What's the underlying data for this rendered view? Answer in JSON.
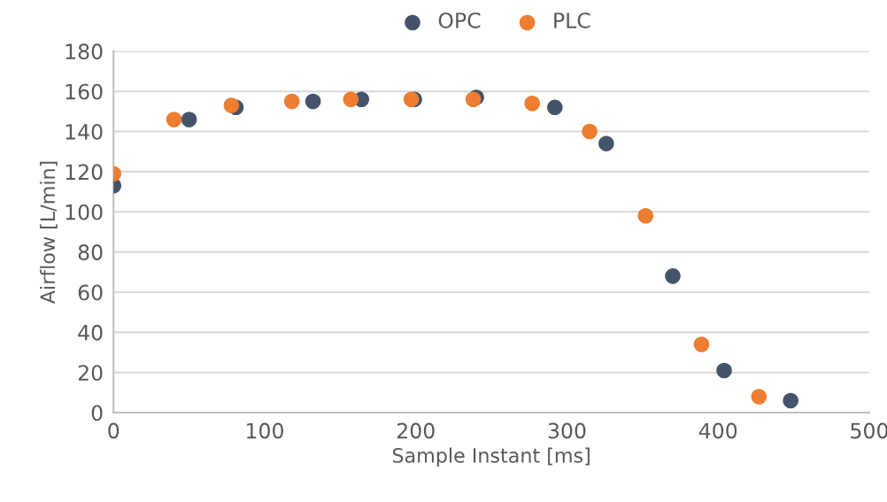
{
  "chart_data": {
    "type": "scatter",
    "xlabel": "Sample Instant [ms]",
    "ylabel": "Airflow [L/min]",
    "series": [
      {
        "name": "OPC",
        "color": "#44546a",
        "x": [
          0,
          50,
          81,
          132,
          164,
          199,
          240,
          292,
          326,
          370,
          404,
          448
        ],
        "values": [
          113,
          146,
          152,
          155,
          156,
          156,
          157,
          152,
          134,
          68,
          21,
          6
        ]
      },
      {
        "name": "PLC",
        "color": "#ed7d31",
        "x": [
          0,
          40,
          78,
          118,
          157,
          197,
          238,
          277,
          315,
          352,
          389,
          427
        ],
        "values": [
          119,
          146,
          153,
          155,
          156,
          156,
          156,
          154,
          140,
          98,
          34,
          8
        ]
      }
    ],
    "xlim": [
      0,
      500
    ],
    "xticks": [
      0,
      100,
      200,
      300,
      400,
      500
    ],
    "ylim": [
      0,
      180
    ],
    "yticks": [
      0,
      20,
      40,
      60,
      80,
      100,
      120,
      140,
      160,
      180
    ],
    "grid": "y",
    "legend": "top",
    "marker": "circle"
  }
}
